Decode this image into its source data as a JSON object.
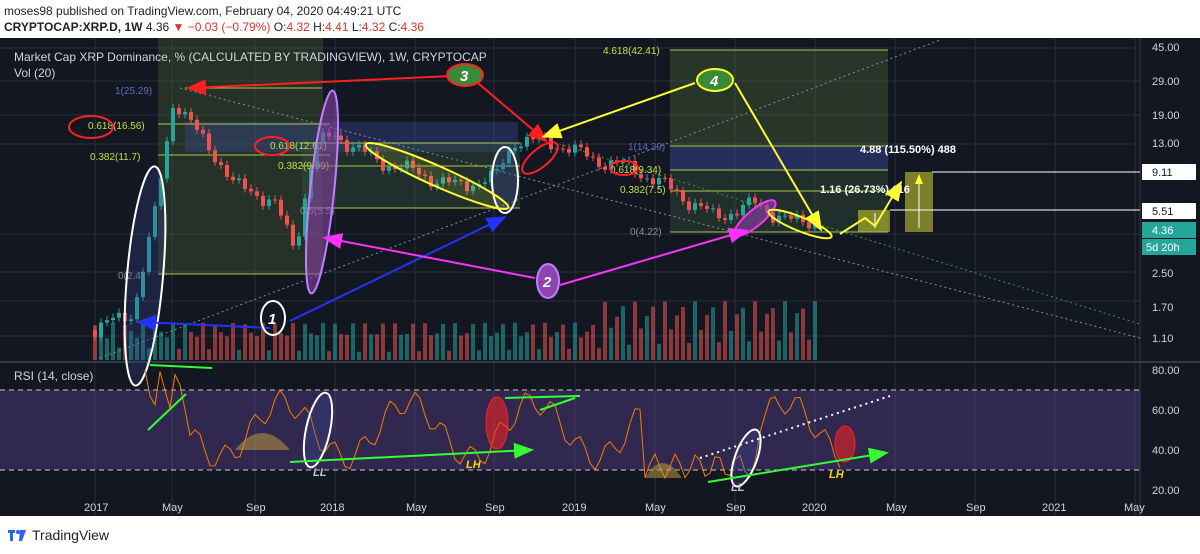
{
  "header": {
    "publisher_line": "moses98 published on TradingView.com, February 04, 2020 04:49:21 UTC",
    "symbol": "CRYPTOCAP:XRP.D, 1W",
    "last": "4.36",
    "change": "▼ −0.03 (−0.79%)",
    "o_label": "O:",
    "o": "4.32",
    "h_label": "H:",
    "h": "4.41",
    "l_label": "L:",
    "l": "4.32",
    "c_label": "C:",
    "c": "4.36"
  },
  "panel": {
    "title": "Market Cap XRP Dominance, % (CALCULATED BY TRADINGVIEW), 1W, CRYPTOCAP",
    "vol": "Vol (20)",
    "rsi": "RSI (14, close)"
  },
  "colors": {
    "background": "#131722",
    "up": "#26a69a",
    "down": "#ef5350",
    "rsi_line": "#f57c00",
    "rsi_band": "#7e57c2",
    "annot_red": "#ff2020",
    "annot_yellow": "#ffff33",
    "annot_blue": "#2233ff",
    "annot_magenta": "#ff33ff",
    "annot_green": "#33ff33",
    "fib": "#c0e040"
  },
  "chart_data": {
    "type": "candlestick",
    "y_scale": "log",
    "ylim": [
      0.9,
      45
    ],
    "price_ticks": [
      "45.00",
      "29.00",
      "19.00",
      "13.00",
      "9.11",
      "5.51",
      "4.36",
      "2.50",
      "1.70",
      "1.10"
    ],
    "price_tags": [
      {
        "value": "9.11",
        "style": "white"
      },
      {
        "value": "5.51",
        "style": "white"
      },
      {
        "value": "4.36",
        "style": "green"
      },
      {
        "value": "5d 20h",
        "style": "green"
      }
    ],
    "x_ticks": [
      "2017",
      "May",
      "Sep",
      "2018",
      "May",
      "Sep",
      "2019",
      "May",
      "Sep",
      "2020",
      "May",
      "Sep",
      "2021",
      "May"
    ],
    "series_close": [
      {
        "x": "2017-01",
        "y": 1.0
      },
      {
        "x": "2017-02",
        "y": 1.15
      },
      {
        "x": "2017-03",
        "y": 1.3
      },
      {
        "x": "2017-04",
        "y": 4.5
      },
      {
        "x": "2017-05",
        "y": 23
      },
      {
        "x": "2017-06",
        "y": 15
      },
      {
        "x": "2017-07",
        "y": 11
      },
      {
        "x": "2017-08",
        "y": 7
      },
      {
        "x": "2017-09",
        "y": 6.5
      },
      {
        "x": "2017-10",
        "y": 5.5
      },
      {
        "x": "2017-11",
        "y": 3.0
      },
      {
        "x": "2017-12",
        "y": 12
      },
      {
        "x": "2018-01",
        "y": 14
      },
      {
        "x": "2018-03",
        "y": 10
      },
      {
        "x": "2018-05",
        "y": 8.5
      },
      {
        "x": "2018-07",
        "y": 7
      },
      {
        "x": "2018-09",
        "y": 7.8
      },
      {
        "x": "2018-10",
        "y": 13
      },
      {
        "x": "2018-12",
        "y": 12.5
      },
      {
        "x": "2019-02",
        "y": 10
      },
      {
        "x": "2019-04",
        "y": 8.8
      },
      {
        "x": "2019-06",
        "y": 6.5
      },
      {
        "x": "2019-08",
        "y": 4.6
      },
      {
        "x": "2019-10",
        "y": 5.5
      },
      {
        "x": "2019-12",
        "y": 4.25
      },
      {
        "x": "2020-01",
        "y": 4.36
      }
    ],
    "fib_labels": [
      {
        "text": "1(25.29)"
      },
      {
        "text": "0.618(16.56)"
      },
      {
        "text": "0.382(11.7)"
      },
      {
        "text": "0.5(5.5)"
      },
      {
        "text": "0(2.4)"
      },
      {
        "text": "0.618(12.61)"
      },
      {
        "text": "0.382(9.99)"
      },
      {
        "text": "4.618(42.41)"
      },
      {
        "text": "1(14.39)"
      },
      {
        "text": "0.618(9.34)"
      },
      {
        "text": "0.382(7.5)"
      },
      {
        "text": "0(4.22)"
      }
    ],
    "projections": [
      {
        "text": "4.88 (115.50%) 488"
      },
      {
        "text": "1.16 (26.73%) 116"
      }
    ],
    "annotations": [
      {
        "text": "1"
      },
      {
        "text": "2"
      },
      {
        "text": "3"
      },
      {
        "text": "4"
      },
      {
        "text": "LL"
      },
      {
        "text": "LH"
      },
      {
        "text": "LL"
      },
      {
        "text": "LH"
      }
    ],
    "rsi": {
      "ylim": [
        20,
        80
      ],
      "ticks": [
        "80.00",
        "60.00",
        "40.00",
        "20.00"
      ],
      "band": [
        30,
        70
      ]
    }
  },
  "footer": {
    "brand": "TradingView"
  }
}
